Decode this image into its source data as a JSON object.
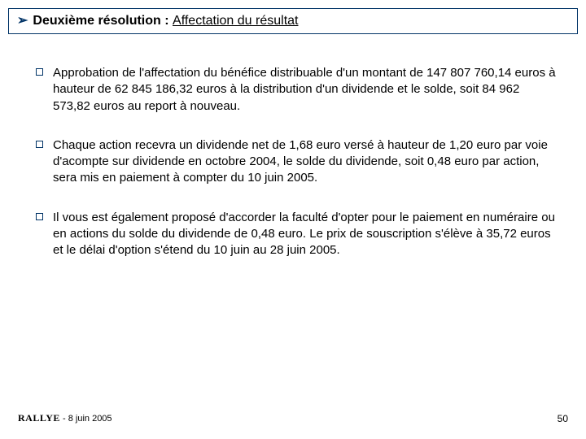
{
  "title": {
    "bold": "Deuxième résolution :",
    "plain": "Affectation du résultat"
  },
  "items": [
    "Approbation de l'affectation du bénéfice distribuable d'un montant de 147 807 760,14 euros à hauteur de 62 845 186,32 euros à la distribution d'un dividende et le solde, soit 84 962 573,82 euros au report à nouveau.",
    "Chaque action recevra un dividende net de 1,68 euro versé à hauteur de 1,20 euro par voie d'acompte sur dividende en octobre 2004, le solde du dividende, soit 0,48 euro par action, sera mis en paiement à compter du 10 juin 2005.",
    "Il vous est également proposé d'accorder la faculté d'opter pour le paiement en numéraire ou en actions du solde du dividende de 0,48 euro. Le prix de souscription s'élève à 35,72 euros et le délai d'option s'étend du 10 juin au 28 juin 2005."
  ],
  "footer": {
    "brand": "RALLYE",
    "date": "8 juin 2005",
    "page": "50"
  },
  "colors": {
    "accent": "#003366",
    "text": "#000000",
    "background": "#ffffff"
  }
}
